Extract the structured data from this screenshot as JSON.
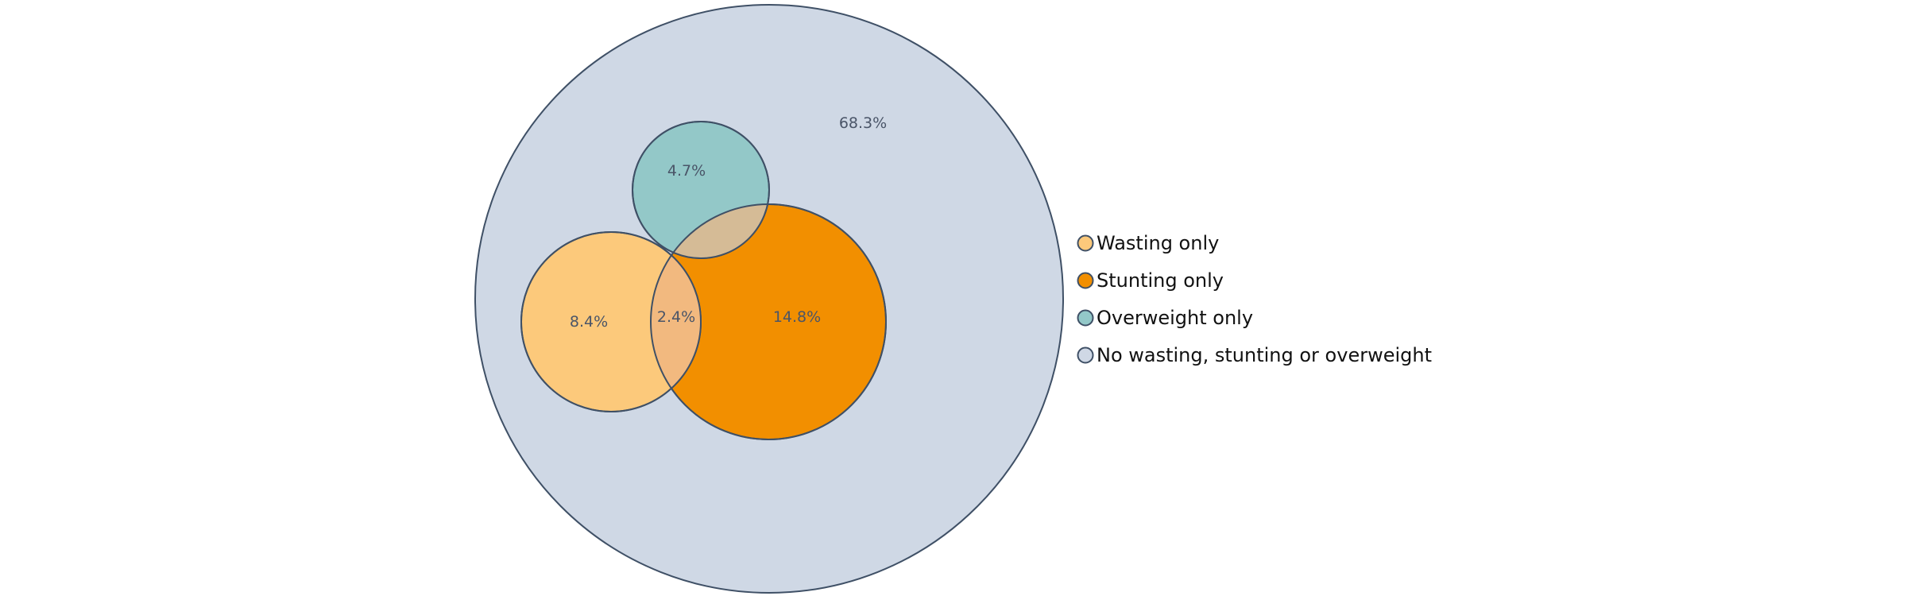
{
  "chart_data": {
    "type": "venn",
    "title": "",
    "regions": [
      {
        "key": "none",
        "label": "68.3%",
        "value": 68.3
      },
      {
        "key": "overweight",
        "label": "4.7%",
        "value": 4.7
      },
      {
        "key": "wasting",
        "label": "8.4%",
        "value": 8.4
      },
      {
        "key": "overlap",
        "label": "2.4%",
        "value": 2.4
      },
      {
        "key": "stunting",
        "label": "14.8%",
        "value": 14.8
      }
    ],
    "legend": {
      "position": "right",
      "entries": [
        {
          "key": "wasting",
          "label": "Wasting only",
          "color": "#fcc97b"
        },
        {
          "key": "stunting",
          "label": "Stunting only",
          "color": "#f28f00"
        },
        {
          "key": "overweight",
          "label": "Overweight only",
          "color": "#93c8c8"
        },
        {
          "key": "none",
          "label": "No wasting, stunting or overweight",
          "color": "#cfd8e5"
        }
      ]
    },
    "colors": {
      "outline": "#3f5066",
      "wasting_stunting_overlap": "#f2b97f",
      "overweight_stunting_overlap": "#d5bb96"
    }
  }
}
